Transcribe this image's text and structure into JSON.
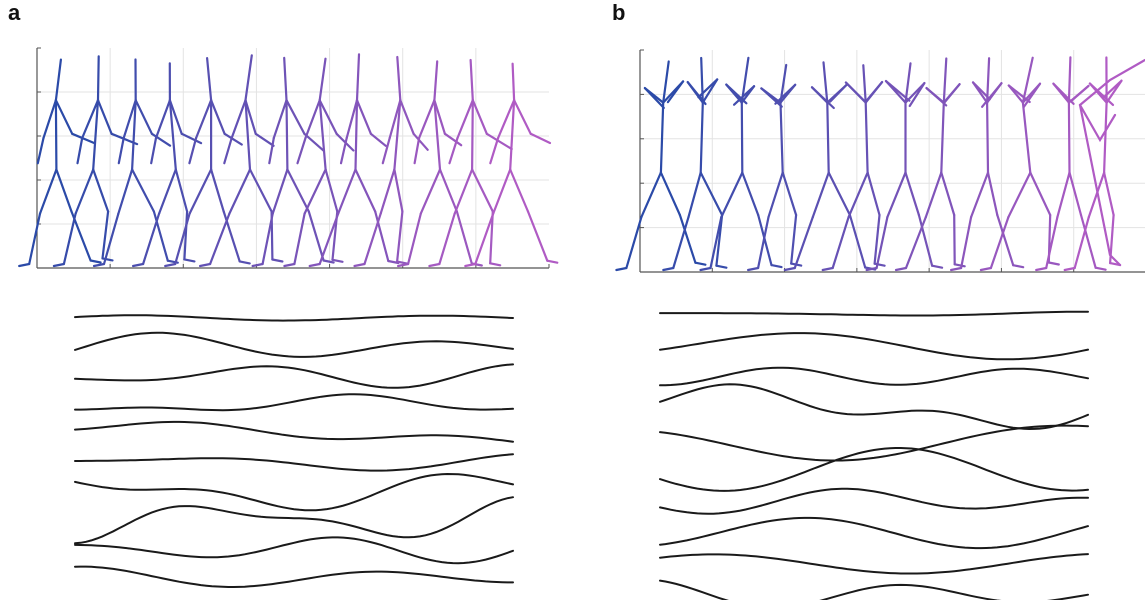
{
  "panels": [
    {
      "label": "a",
      "figure_color_start": "#2b4aa8",
      "figure_color_end": "#b05bc4",
      "stick_figure_count": 13,
      "trajectory_count": 10
    },
    {
      "label": "b",
      "figure_color_start": "#2b4aa8",
      "figure_color_end": "#b05bc4",
      "stick_figure_count": 12,
      "trajectory_count": 10
    }
  ],
  "colors": {
    "grid": "#e3e3e3",
    "axis": "#555555",
    "curve": "#1a1a1a"
  }
}
